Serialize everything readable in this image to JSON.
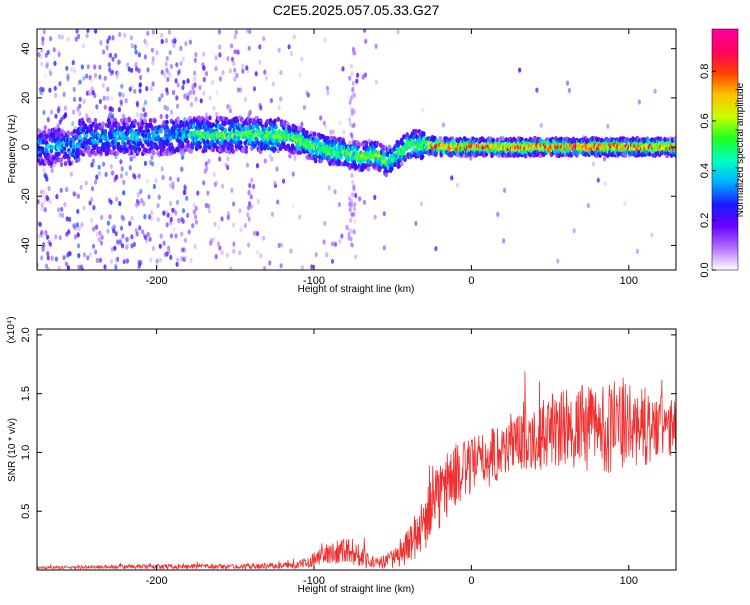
{
  "title": "C2E5.2025.057.05.33.G27",
  "chart_data": [
    {
      "type": "heatmap",
      "xlabel": "Height of straight line (km)",
      "ylabel": "Frequency (Hz)",
      "xlim": [
        -276,
        130
      ],
      "ylim": [
        -50,
        48
      ],
      "x_ticks": [
        -200,
        -100,
        0,
        100
      ],
      "y_ticks": [
        -40,
        -20,
        0,
        20,
        40
      ],
      "colorbar": {
        "label": "Normalized spectral amplitude",
        "ticks": [
          0.0,
          0.2,
          0.4,
          0.6,
          0.8
        ],
        "range": [
          0,
          0.97
        ],
        "colors": [
          "#ffffff",
          "#b070ff",
          "#6a00ff",
          "#1a1aff",
          "#00b0ff",
          "#00ffc0",
          "#20ff20",
          "#c8ff00",
          "#ffc000",
          "#ff4000",
          "#ff0060",
          "#ff00a0"
        ]
      },
      "ridge_frequency_hz": [
        {
          "x": -250,
          "y": 4
        },
        {
          "x": -200,
          "y": 4
        },
        {
          "x": -175,
          "y": 5
        },
        {
          "x": -150,
          "y": 5
        },
        {
          "x": -120,
          "y": 5
        },
        {
          "x": -100,
          "y": 0
        },
        {
          "x": -85,
          "y": -2
        },
        {
          "x": -70,
          "y": -4
        },
        {
          "x": -60,
          "y": -3
        },
        {
          "x": -55,
          "y": -6
        },
        {
          "x": -50,
          "y": -5
        },
        {
          "x": -45,
          "y": -2
        },
        {
          "x": -40,
          "y": 1
        },
        {
          "x": -30,
          "y": 1
        },
        {
          "x": -20,
          "y": 0
        },
        {
          "x": 0,
          "y": 0
        },
        {
          "x": 50,
          "y": 0
        },
        {
          "x": 100,
          "y": 0
        },
        {
          "x": 130,
          "y": 0
        }
      ]
    },
    {
      "type": "line",
      "xlabel": "Height of straight line (km)",
      "ylabel": "SNR (10 * v/v)",
      "y_multiplier": "(x10⁴)",
      "xlim": [
        -276,
        130
      ],
      "ylim": [
        0,
        2.05
      ],
      "x_ticks": [
        -200,
        -100,
        0,
        100
      ],
      "y_ticks": [
        0.5,
        1.0,
        1.5,
        2.0
      ],
      "y_tick_labels": [
        "0.5",
        "1.0",
        "1.5",
        "2.0"
      ],
      "color": "#f03030",
      "envelope": [
        {
          "x": -276,
          "mean": 0.02,
          "spread": 0.01
        },
        {
          "x": -200,
          "mean": 0.03,
          "spread": 0.02
        },
        {
          "x": -150,
          "mean": 0.03,
          "spread": 0.02
        },
        {
          "x": -110,
          "mean": 0.04,
          "spread": 0.03
        },
        {
          "x": -95,
          "mean": 0.12,
          "spread": 0.08
        },
        {
          "x": -80,
          "mean": 0.18,
          "spread": 0.12
        },
        {
          "x": -70,
          "mean": 0.12,
          "spread": 0.1
        },
        {
          "x": -60,
          "mean": 0.05,
          "spread": 0.05
        },
        {
          "x": -45,
          "mean": 0.12,
          "spread": 0.1
        },
        {
          "x": -35,
          "mean": 0.3,
          "spread": 0.2
        },
        {
          "x": -25,
          "mean": 0.5,
          "spread": 0.3
        },
        {
          "x": -15,
          "mean": 0.75,
          "spread": 0.3
        },
        {
          "x": -5,
          "mean": 0.85,
          "spread": 0.25
        },
        {
          "x": 10,
          "mean": 0.95,
          "spread": 0.25
        },
        {
          "x": 30,
          "mean": 1.1,
          "spread": 0.25
        },
        {
          "x": 60,
          "mean": 1.2,
          "spread": 0.35
        },
        {
          "x": 90,
          "mean": 1.22,
          "spread": 0.4
        },
        {
          "x": 130,
          "mean": 1.2,
          "spread": 0.25
        }
      ]
    }
  ]
}
